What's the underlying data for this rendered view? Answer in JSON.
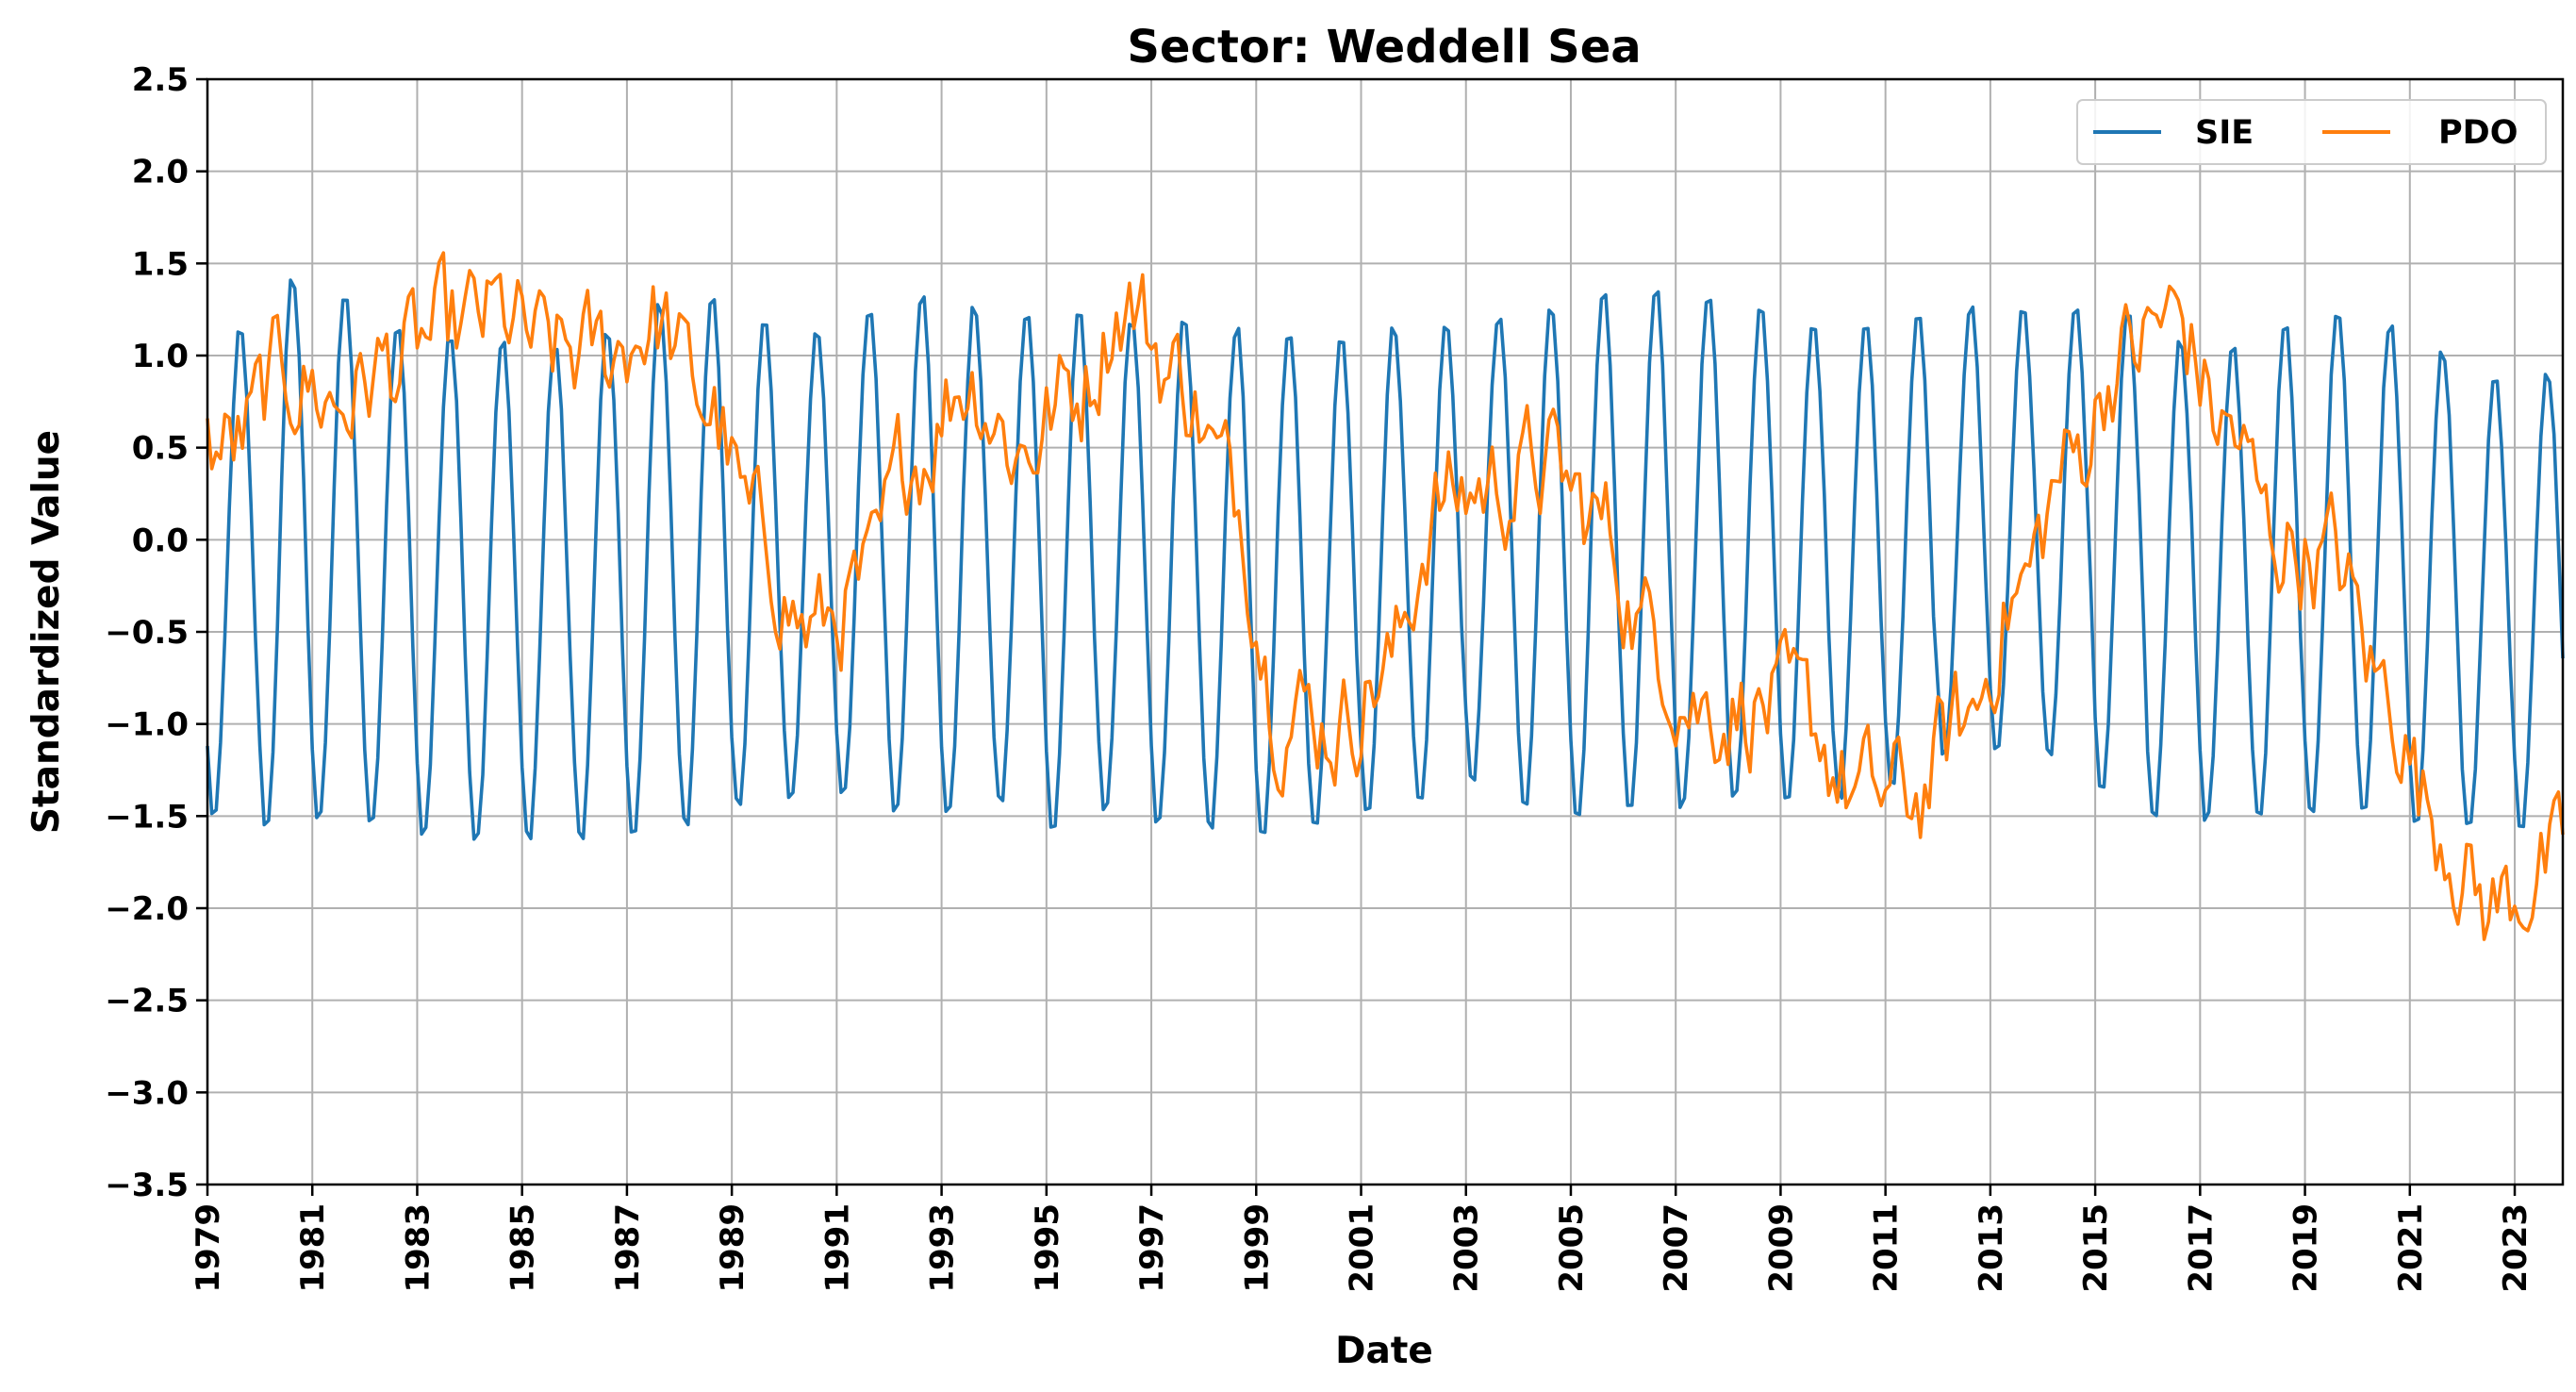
{
  "chart_data": {
    "type": "line",
    "title": "Sector: Weddell Sea",
    "xlabel": "Date",
    "ylabel": "Standardized Value",
    "xlim": [
      "1979-01",
      "2023-12"
    ],
    "ylim": [
      -3.5,
      2.5
    ],
    "x_ticks": [
      "1979",
      "1981",
      "1983",
      "1985",
      "1987",
      "1989",
      "1991",
      "1993",
      "1995",
      "1997",
      "1999",
      "2001",
      "2003",
      "2005",
      "2007",
      "2009",
      "2011",
      "2013",
      "2015",
      "2017",
      "2019",
      "2021",
      "2023"
    ],
    "y_ticks": [
      2.5,
      2.0,
      1.5,
      1.0,
      0.5,
      0.0,
      -0.5,
      -1.0,
      -1.5,
      -2.0,
      -2.5,
      -3.0,
      -3.5
    ],
    "y_tick_labels": [
      "2.5",
      "2.0",
      "1.5",
      "1.0",
      "0.5",
      "0.0",
      "−0.5",
      "−1.0",
      "−1.5",
      "−2.0",
      "−2.5",
      "−3.0",
      "−3.5"
    ],
    "grid": true,
    "legend": "top-right",
    "series": [
      {
        "name": "SIE",
        "color": "#1f77b4",
        "x_start": "1979-01",
        "frequency": "monthly",
        "annual_cycle_min": [
          -1.52,
          -1.58,
          -1.55,
          -1.57,
          -1.62,
          -1.65,
          -1.64,
          -1.64,
          -1.64,
          -1.58,
          -1.47,
          -1.42,
          -1.42,
          -1.49,
          -1.52,
          -1.45,
          -1.58,
          -1.5,
          -1.55,
          -1.6,
          -1.65,
          -1.6,
          -1.5,
          -1.45,
          -1.32,
          -1.48,
          -1.53,
          -1.5,
          -1.48,
          -1.42,
          -1.45,
          -1.42,
          -1.35,
          -1.18,
          -1.15,
          -1.2,
          -1.38,
          -1.52,
          -1.55,
          -1.55,
          -1.52,
          -1.5,
          -1.55,
          -1.6,
          -1.58
        ],
        "annual_cycle_max": [
          1.15,
          1.44,
          1.37,
          1.18,
          1.13,
          1.1,
          1.08,
          1.15,
          1.3,
          1.34,
          1.2,
          1.15,
          1.27,
          1.35,
          1.28,
          1.24,
          1.26,
          1.23,
          1.2,
          1.17,
          1.16,
          1.1,
          1.17,
          1.19,
          1.23,
          1.28,
          1.35,
          1.37,
          1.34,
          1.27,
          1.21,
          1.21,
          1.25,
          1.28,
          1.27,
          1.27,
          1.23,
          1.1,
          1.07,
          1.2,
          1.28,
          1.2,
          1.04,
          0.9,
          0.92
        ]
      },
      {
        "name": "PDO",
        "color": "#ff7f0e",
        "x_start": "1979-01",
        "frequency": "monthly",
        "annual_mean_anchors": [
          0.5,
          0.9,
          0.75,
          0.95,
          1.1,
          1.2,
          1.0,
          1.0,
          1.2,
          0.75,
          0.0,
          -0.5,
          -0.3,
          0.5,
          0.9,
          0.5,
          0.8,
          1.3,
          0.9,
          0.3,
          -0.9,
          -1.0,
          -0.7,
          0.2,
          0.3,
          0.4,
          0.1,
          -0.5,
          -0.9,
          -0.9,
          -1.0,
          -1.4,
          -1.4,
          -1.0,
          -0.3,
          0.4,
          1.0,
          1.2,
          0.6,
          0.0,
          -0.1,
          -0.8,
          -1.5,
          -2.0,
          -1.8
        ]
      }
    ]
  }
}
